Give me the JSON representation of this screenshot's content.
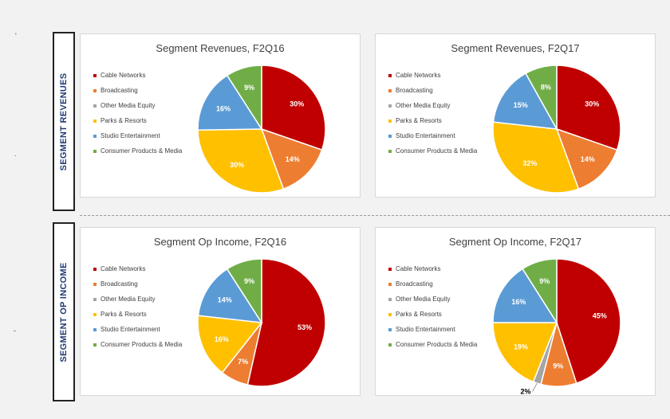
{
  "side_labels": [
    "SEGMENT REVENUES",
    "SEGMENT OP INCOME"
  ],
  "margin_marks": [
    "'",
    ".",
    "-"
  ],
  "legend": [
    {
      "label": "Cable Networks",
      "color": "#c00000"
    },
    {
      "label": "Broadcasting",
      "color": "#ed7d31"
    },
    {
      "label": "Other Media Equity",
      "color": "#a5a5a5"
    },
    {
      "label": "Parks & Resorts",
      "color": "#ffc000"
    },
    {
      "label": "Studio Entertainment",
      "color": "#5b9bd5"
    },
    {
      "label": "Consumer Products & Media",
      "color": "#70ad47"
    }
  ],
  "chart_data": [
    {
      "type": "pie",
      "title": "Segment Revenues, F2Q16",
      "categories": [
        "Cable Networks",
        "Broadcasting",
        "Other Media Equity",
        "Parks & Resorts",
        "Studio Entertainment",
        "Consumer Products & Media"
      ],
      "values": [
        30,
        14,
        0,
        30,
        16,
        9
      ],
      "labels": [
        "30%",
        "14%",
        "",
        "30%",
        "16%",
        "9%"
      ]
    },
    {
      "type": "pie",
      "title": "Segment Revenues, F2Q17",
      "categories": [
        "Cable Networks",
        "Broadcasting",
        "Other Media Equity",
        "Parks & Resorts",
        "Studio Entertainment",
        "Consumer Products & Media"
      ],
      "values": [
        30,
        14,
        0,
        32,
        15,
        8
      ],
      "labels": [
        "30%",
        "14%",
        "",
        "32%",
        "15%",
        "8%"
      ]
    },
    {
      "type": "pie",
      "title": "Segment Op Income, F2Q16",
      "categories": [
        "Cable Networks",
        "Broadcasting",
        "Other Media Equity",
        "Parks & Resorts",
        "Studio Entertainment",
        "Consumer Products & Media"
      ],
      "values": [
        53,
        7,
        0,
        16,
        14,
        9
      ],
      "labels": [
        "53%",
        "7%",
        "",
        "16%",
        "14%",
        "9%"
      ]
    },
    {
      "type": "pie",
      "title": "Segment Op Income, F2Q17",
      "categories": [
        "Cable Networks",
        "Broadcasting",
        "Other Media Equity",
        "Parks & Resorts",
        "Studio Entertainment",
        "Consumer Products & Media"
      ],
      "values": [
        45,
        9,
        2,
        19,
        16,
        9
      ],
      "labels": [
        "45%",
        "9%",
        "2%",
        "19%",
        "16%",
        "9%"
      ]
    }
  ]
}
